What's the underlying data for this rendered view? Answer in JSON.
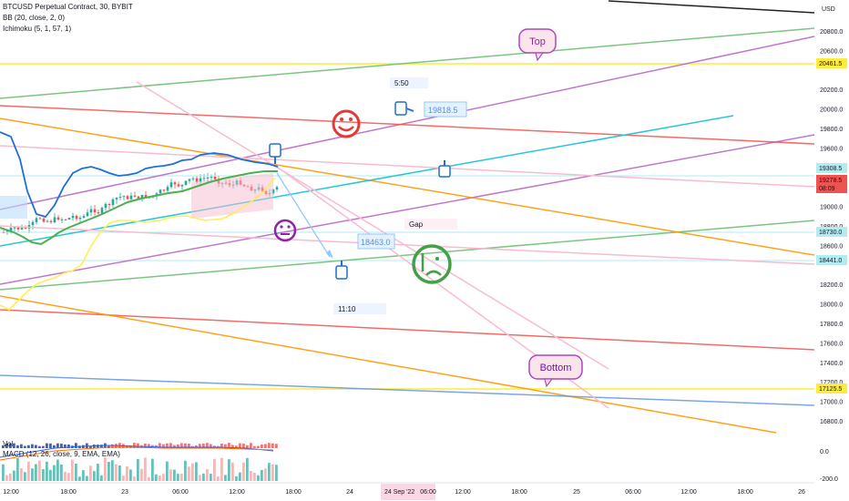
{
  "legend": {
    "symbol": "BTCUSD Perpetual Contract, 30, BYBIT",
    "bb": "BB (20, close, 2, 0)",
    "ichimoku": "Ichimoku (5, 1, 57, 1)",
    "vol": "Vol",
    "macd": "MACD (12, 26, close, 9, EMA, EMA)"
  },
  "chart_data": {
    "type": "line",
    "title": "BTCUSD Perpetual Contract, 30, BYBIT",
    "currency": "USD",
    "ylim": [
      16600,
      21000
    ],
    "y_ticks": [
      20800,
      20600,
      20200,
      20000,
      19800,
      19600,
      19000,
      18800,
      18600,
      18200,
      18000,
      17800,
      17600,
      17400,
      17200,
      17000,
      16800
    ],
    "x_ticks": [
      "12:00",
      "18:00",
      "23",
      "06:00",
      "12:00",
      "18:00",
      "24",
      "24 Sep '22",
      "06:00",
      "12:00",
      "18:00",
      "25",
      "06:00",
      "12:00",
      "18:00",
      "26"
    ],
    "price_labels": [
      {
        "value": "20461.5",
        "color": "#ffeb3b"
      },
      {
        "value": "19308.5",
        "color": "#b2ebf2"
      },
      {
        "value": "19278.5",
        "color": "#ef5350"
      },
      {
        "value": "08:09",
        "color": "#ef5350"
      },
      {
        "value": "18730.0",
        "color": "#b2ebf2"
      },
      {
        "value": "18441.0",
        "color": "#b2ebf2"
      },
      {
        "value": "17125.5",
        "color": "#ffeb3b"
      }
    ],
    "annotations": {
      "top": "Top",
      "bottom": "Bottom",
      "gap": "Gap",
      "time_1": "5:50",
      "time_2": "11:10",
      "target_up": "19818.5",
      "target_down": "18463.0"
    },
    "macd_ticks": [
      "0.0",
      "-200.0"
    ]
  }
}
